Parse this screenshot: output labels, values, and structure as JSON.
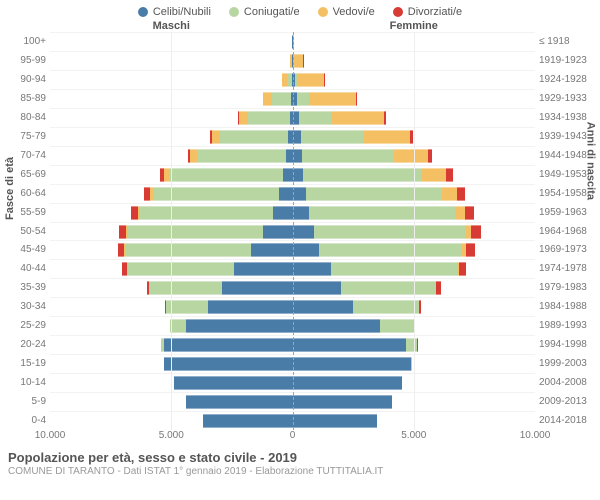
{
  "chart": {
    "type": "population-pyramid-stacked",
    "colors": {
      "celibi": "#4a7ca8",
      "coniugati": "#b8d6a2",
      "vedovi": "#f4c063",
      "divorziati": "#d83a34",
      "grid": "#eeeeee",
      "centerline": "#88aaca",
      "text": "#666666"
    },
    "legend": [
      {
        "key": "celibi",
        "label": "Celibi/Nubili"
      },
      {
        "key": "coniugati",
        "label": "Coniugati/e"
      },
      {
        "key": "vedovi",
        "label": "Vedovi/e"
      },
      {
        "key": "divorziati",
        "label": "Divorziati/e"
      }
    ],
    "header_male": "Maschi",
    "header_female": "Femmine",
    "axis_left_label": "Fasce di età",
    "axis_right_label": "Anni di nascita",
    "xmax": 10000,
    "xticks": [
      {
        "pos": 0.0,
        "label": "10.000"
      },
      {
        "pos": 0.25,
        "label": "5.000"
      },
      {
        "pos": 0.5,
        "label": "0"
      },
      {
        "pos": 0.75,
        "label": "5.000"
      },
      {
        "pos": 1.0,
        "label": "10.000"
      }
    ],
    "title": "Popolazione per età, sesso e stato civile - 2019",
    "subtitle": "COMUNE DI TARANTO - Dati ISTAT 1° gennaio 2019 - Elaborazione TUTTITALIA.IT",
    "rows": [
      {
        "age": "100+",
        "birth": "≤ 1918",
        "m": {
          "c": 1,
          "co": 0,
          "v": 10,
          "d": 0
        },
        "f": {
          "c": 5,
          "co": 0,
          "v": 60,
          "d": 0
        }
      },
      {
        "age": "95-99",
        "birth": "1919-1923",
        "m": {
          "c": 5,
          "co": 30,
          "v": 60,
          "d": 2
        },
        "f": {
          "c": 30,
          "co": 10,
          "v": 400,
          "d": 5
        }
      },
      {
        "age": "90-94",
        "birth": "1924-1928",
        "m": {
          "c": 20,
          "co": 200,
          "v": 200,
          "d": 5
        },
        "f": {
          "c": 100,
          "co": 100,
          "v": 1100,
          "d": 10
        }
      },
      {
        "age": "85-89",
        "birth": "1929-1933",
        "m": {
          "c": 60,
          "co": 800,
          "v": 350,
          "d": 10
        },
        "f": {
          "c": 200,
          "co": 500,
          "v": 1900,
          "d": 30
        }
      },
      {
        "age": "80-84",
        "birth": "1934-1938",
        "m": {
          "c": 120,
          "co": 1700,
          "v": 400,
          "d": 30
        },
        "f": {
          "c": 280,
          "co": 1300,
          "v": 2200,
          "d": 70
        }
      },
      {
        "age": "75-79",
        "birth": "1939-1943",
        "m": {
          "c": 180,
          "co": 2800,
          "v": 350,
          "d": 60
        },
        "f": {
          "c": 350,
          "co": 2600,
          "v": 1900,
          "d": 110
        }
      },
      {
        "age": "70-74",
        "birth": "1944-1948",
        "m": {
          "c": 250,
          "co": 3700,
          "v": 280,
          "d": 100
        },
        "f": {
          "c": 400,
          "co": 3800,
          "v": 1400,
          "d": 170
        }
      },
      {
        "age": "65-69",
        "birth": "1949-1953",
        "m": {
          "c": 380,
          "co": 4700,
          "v": 200,
          "d": 170
        },
        "f": {
          "c": 450,
          "co": 4900,
          "v": 1000,
          "d": 250
        }
      },
      {
        "age": "60-64",
        "birth": "1954-1958",
        "m": {
          "c": 550,
          "co": 5200,
          "v": 130,
          "d": 230
        },
        "f": {
          "c": 550,
          "co": 5600,
          "v": 650,
          "d": 320
        }
      },
      {
        "age": "55-59",
        "birth": "1959-1963",
        "m": {
          "c": 800,
          "co": 5500,
          "v": 80,
          "d": 280
        },
        "f": {
          "c": 700,
          "co": 6000,
          "v": 420,
          "d": 380
        }
      },
      {
        "age": "50-54",
        "birth": "1964-1968",
        "m": {
          "c": 1200,
          "co": 5600,
          "v": 50,
          "d": 300
        },
        "f": {
          "c": 900,
          "co": 6200,
          "v": 260,
          "d": 420
        }
      },
      {
        "age": "45-49",
        "birth": "1969-1973",
        "m": {
          "c": 1700,
          "co": 5200,
          "v": 30,
          "d": 260
        },
        "f": {
          "c": 1100,
          "co": 5900,
          "v": 150,
          "d": 380
        }
      },
      {
        "age": "40-44",
        "birth": "1974-1978",
        "m": {
          "c": 2400,
          "co": 4400,
          "v": 15,
          "d": 200
        },
        "f": {
          "c": 1600,
          "co": 5200,
          "v": 70,
          "d": 300
        }
      },
      {
        "age": "35-39",
        "birth": "1979-1983",
        "m": {
          "c": 2900,
          "co": 3000,
          "v": 5,
          "d": 110
        },
        "f": {
          "c": 2000,
          "co": 3900,
          "v": 30,
          "d": 180
        }
      },
      {
        "age": "30-34",
        "birth": "1984-1988",
        "m": {
          "c": 3500,
          "co": 1700,
          "v": 2,
          "d": 50
        },
        "f": {
          "c": 2500,
          "co": 2700,
          "v": 10,
          "d": 90
        }
      },
      {
        "age": "25-29",
        "birth": "1989-1993",
        "m": {
          "c": 4400,
          "co": 650,
          "v": 0,
          "d": 15
        },
        "f": {
          "c": 3600,
          "co": 1400,
          "v": 3,
          "d": 30
        }
      },
      {
        "age": "20-24",
        "birth": "1994-1998",
        "m": {
          "c": 5300,
          "co": 120,
          "v": 0,
          "d": 2
        },
        "f": {
          "c": 4700,
          "co": 450,
          "v": 0,
          "d": 5
        }
      },
      {
        "age": "15-19",
        "birth": "1999-2003",
        "m": {
          "c": 5300,
          "co": 5,
          "v": 0,
          "d": 0
        },
        "f": {
          "c": 4900,
          "co": 40,
          "v": 0,
          "d": 0
        }
      },
      {
        "age": "10-14",
        "birth": "2004-2008",
        "m": {
          "c": 4900,
          "co": 0,
          "v": 0,
          "d": 0
        },
        "f": {
          "c": 4500,
          "co": 0,
          "v": 0,
          "d": 0
        }
      },
      {
        "age": "5-9",
        "birth": "2009-2013",
        "m": {
          "c": 4400,
          "co": 0,
          "v": 0,
          "d": 0
        },
        "f": {
          "c": 4100,
          "co": 0,
          "v": 0,
          "d": 0
        }
      },
      {
        "age": "0-4",
        "birth": "2014-2018",
        "m": {
          "c": 3700,
          "co": 0,
          "v": 0,
          "d": 0
        },
        "f": {
          "c": 3500,
          "co": 0,
          "v": 0,
          "d": 0
        }
      }
    ]
  }
}
